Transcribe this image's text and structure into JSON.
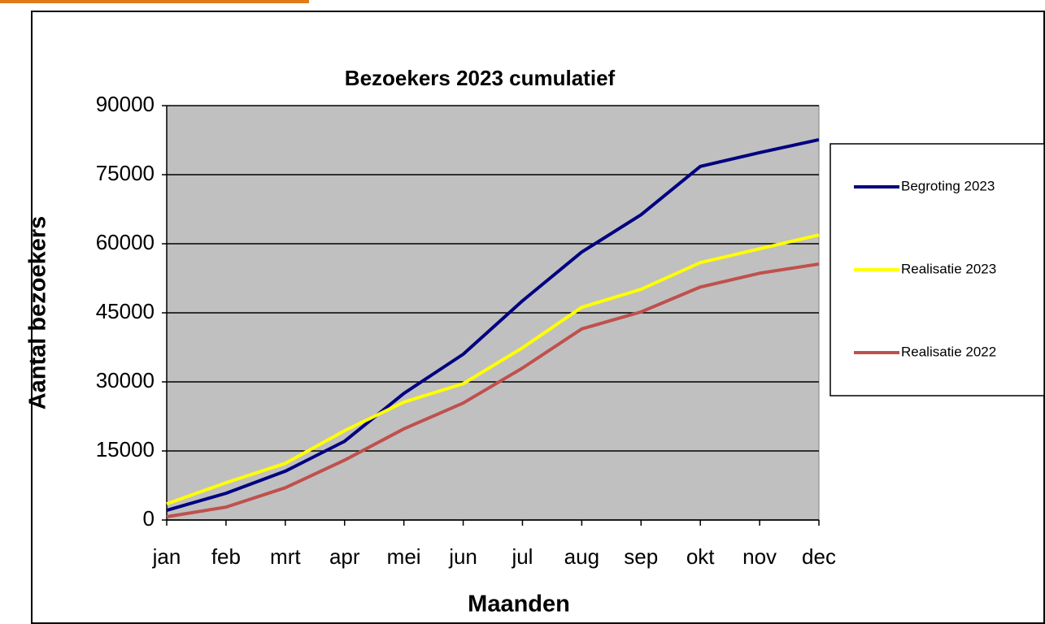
{
  "chart_data": {
    "type": "line",
    "title": "Bezoekers 2023 cumulatief",
    "x_label": "Maanden",
    "y_label": "Aantal  bezoekers",
    "categories": [
      "jan",
      "feb",
      "mrt",
      "apr",
      "mei",
      "jun",
      "jul",
      "aug",
      "sep",
      "okt",
      "nov",
      "dec"
    ],
    "series": [
      {
        "name": "Begroting 2023",
        "color": "#000080",
        "values": [
          2100,
          5800,
          10600,
          17100,
          27500,
          36000,
          47600,
          58200,
          66300,
          76800,
          79800,
          82600
        ]
      },
      {
        "name": "Realisatie 2023",
        "color": "#ffff00",
        "values": [
          3500,
          8100,
          12300,
          19400,
          25600,
          29600,
          37400,
          46200,
          50100,
          55900,
          58900,
          61900
        ]
      },
      {
        "name": "Realisatie 2022",
        "color": "#c0504d",
        "values": [
          700,
          2800,
          7000,
          13000,
          19800,
          25400,
          33000,
          41500,
          45200,
          50600,
          53600,
          55600
        ]
      }
    ],
    "ylim": [
      0,
      90000
    ],
    "yticks": [
      0,
      15000,
      30000,
      45000,
      60000,
      75000,
      90000
    ],
    "grid": true,
    "legend": "right",
    "plot_background": "#c0c0c0"
  }
}
